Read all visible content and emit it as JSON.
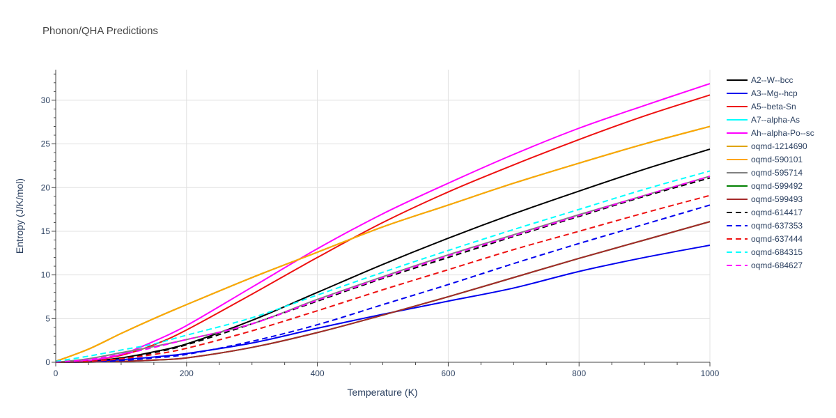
{
  "chart_data": {
    "type": "line",
    "title": "Phonon/QHA Predictions",
    "xlabel": "Temperature (K)",
    "ylabel": "Entropy (J/K/mol)",
    "xlim": [
      0,
      1000
    ],
    "ylim": [
      0,
      33.5
    ],
    "xticks": [
      0,
      200,
      400,
      600,
      800,
      1000
    ],
    "yticks": [
      0,
      5,
      10,
      15,
      20,
      25,
      30
    ],
    "grid": true,
    "legend_position": "right",
    "series": [
      {
        "name": "A2--W--bcc",
        "color": "#000000",
        "dash": "solid",
        "x": [
          0,
          50,
          100,
          150,
          200,
          300,
          400,
          500,
          600,
          700,
          800,
          900,
          1000
        ],
        "y": [
          0,
          0.1,
          0.5,
          1.2,
          2.1,
          4.8,
          8.0,
          11.2,
          14.2,
          17.0,
          19.6,
          22.1,
          24.4
        ]
      },
      {
        "name": "A3--Mg--hcp",
        "color": "#0000ee",
        "dash": "solid",
        "x": [
          0,
          50,
          100,
          150,
          200,
          300,
          400,
          500,
          600,
          700,
          800,
          900,
          1000
        ],
        "y": [
          0,
          0.05,
          0.3,
          0.6,
          1.0,
          2.2,
          3.9,
          5.5,
          7.0,
          8.5,
          10.4,
          12.0,
          13.4
        ]
      },
      {
        "name": "A5--beta-Sn",
        "color": "#ee1111",
        "dash": "solid",
        "x": [
          0,
          50,
          100,
          150,
          200,
          300,
          400,
          500,
          600,
          700,
          800,
          900,
          1000
        ],
        "y": [
          0,
          0.2,
          0.8,
          2.0,
          3.7,
          7.8,
          12.0,
          16.0,
          19.5,
          22.6,
          25.5,
          28.2,
          30.6
        ]
      },
      {
        "name": "A7--alpha-As",
        "color": "#00ffff",
        "dash": "solid",
        "x": [
          0,
          50,
          100,
          150,
          200,
          300,
          400,
          500,
          600,
          700,
          800,
          900,
          1000
        ],
        "y": [
          0.1,
          1.5,
          3.3,
          5.0,
          6.6,
          9.7,
          12.6,
          15.5,
          18.0,
          20.5,
          22.8,
          25.0,
          27.0
        ]
      },
      {
        "name": "Ah--alpha-Po--sc",
        "color": "#ff00ff",
        "dash": "solid",
        "x": [
          0,
          50,
          100,
          150,
          200,
          300,
          400,
          500,
          600,
          700,
          800,
          900,
          1000
        ],
        "y": [
          0,
          0.2,
          0.9,
          2.4,
          4.2,
          8.6,
          13.0,
          17.0,
          20.5,
          23.8,
          26.8,
          29.4,
          31.9
        ]
      },
      {
        "name": "oqmd-1214690",
        "color": "#e0a400",
        "dash": "solid",
        "x": [
          0,
          50,
          100,
          150,
          200,
          300,
          400,
          500,
          600,
          700,
          800,
          900,
          1000
        ],
        "y": [
          0.1,
          1.5,
          3.3,
          5.0,
          6.6,
          9.7,
          12.6,
          15.5,
          18.0,
          20.5,
          22.8,
          25.0,
          27.0
        ]
      },
      {
        "name": "oqmd-590101",
        "color": "#ffa500",
        "dash": "solid",
        "x": [
          0,
          50,
          100,
          150,
          200,
          300,
          400,
          500,
          600,
          700,
          800,
          900,
          1000
        ],
        "y": [
          0.1,
          1.5,
          3.3,
          5.0,
          6.6,
          9.7,
          12.6,
          15.5,
          18.0,
          20.5,
          22.8,
          25.0,
          27.0
        ]
      },
      {
        "name": "oqmd-595714",
        "color": "#808080",
        "dash": "solid",
        "x": [
          0,
          50,
          100,
          150,
          200,
          300,
          400,
          500,
          600,
          700,
          800,
          900,
          1000
        ],
        "y": [
          0,
          0.4,
          1.1,
          1.8,
          2.6,
          4.4,
          7.2,
          9.8,
          12.3,
          14.6,
          16.9,
          19.1,
          21.3
        ]
      },
      {
        "name": "oqmd-599492",
        "color": "#008000",
        "dash": "solid",
        "x": [
          0,
          50,
          100,
          150,
          200,
          300,
          400,
          500,
          600,
          700,
          800,
          900,
          1000
        ],
        "y": [
          0,
          0.02,
          0.1,
          0.25,
          0.5,
          1.7,
          3.4,
          5.4,
          7.5,
          9.7,
          11.9,
          14.0,
          16.1
        ]
      },
      {
        "name": "oqmd-599493",
        "color": "#a52a2a",
        "dash": "solid",
        "x": [
          0,
          50,
          100,
          150,
          200,
          300,
          400,
          500,
          600,
          700,
          800,
          900,
          1000
        ],
        "y": [
          0,
          0.02,
          0.1,
          0.25,
          0.5,
          1.7,
          3.4,
          5.4,
          7.5,
          9.7,
          11.9,
          14.0,
          16.1
        ]
      },
      {
        "name": "oqmd-614417",
        "color": "#000000",
        "dash": "dash",
        "x": [
          0,
          50,
          100,
          150,
          200,
          300,
          400,
          500,
          600,
          700,
          800,
          900,
          1000
        ],
        "y": [
          0,
          0.1,
          0.4,
          1.1,
          2.0,
          4.4,
          7.0,
          9.6,
          12.0,
          14.4,
          16.7,
          19.0,
          21.1
        ]
      },
      {
        "name": "oqmd-637353",
        "color": "#0000ee",
        "dash": "dash",
        "x": [
          0,
          50,
          100,
          150,
          200,
          300,
          400,
          500,
          600,
          700,
          800,
          900,
          1000
        ],
        "y": [
          0,
          0.05,
          0.2,
          0.5,
          0.9,
          2.4,
          4.3,
          6.6,
          8.9,
          11.3,
          13.6,
          15.8,
          18.0
        ]
      },
      {
        "name": "oqmd-637444",
        "color": "#ee1111",
        "dash": "dash",
        "x": [
          0,
          50,
          100,
          150,
          200,
          300,
          400,
          500,
          600,
          700,
          800,
          900,
          1000
        ],
        "y": [
          0,
          0.1,
          0.4,
          0.9,
          1.6,
          3.6,
          5.9,
          8.3,
          10.6,
          12.9,
          15.0,
          17.1,
          19.1
        ]
      },
      {
        "name": "oqmd-684315",
        "color": "#00ffff",
        "dash": "dash",
        "x": [
          0,
          50,
          100,
          150,
          200,
          300,
          400,
          500,
          600,
          700,
          800,
          900,
          1000
        ],
        "y": [
          0.1,
          0.7,
          1.4,
          2.1,
          3.1,
          5.1,
          7.7,
          10.3,
          12.8,
          15.2,
          17.5,
          19.8,
          21.9
        ]
      },
      {
        "name": "oqmd-684627",
        "color": "#ff00ff",
        "dash": "dash",
        "x": [
          0,
          50,
          100,
          150,
          200,
          300,
          400,
          500,
          600,
          700,
          800,
          900,
          1000
        ],
        "y": [
          0,
          0.3,
          0.9,
          1.7,
          2.6,
          4.4,
          7.1,
          9.7,
          12.2,
          14.5,
          16.8,
          19.1,
          21.3
        ]
      }
    ]
  }
}
